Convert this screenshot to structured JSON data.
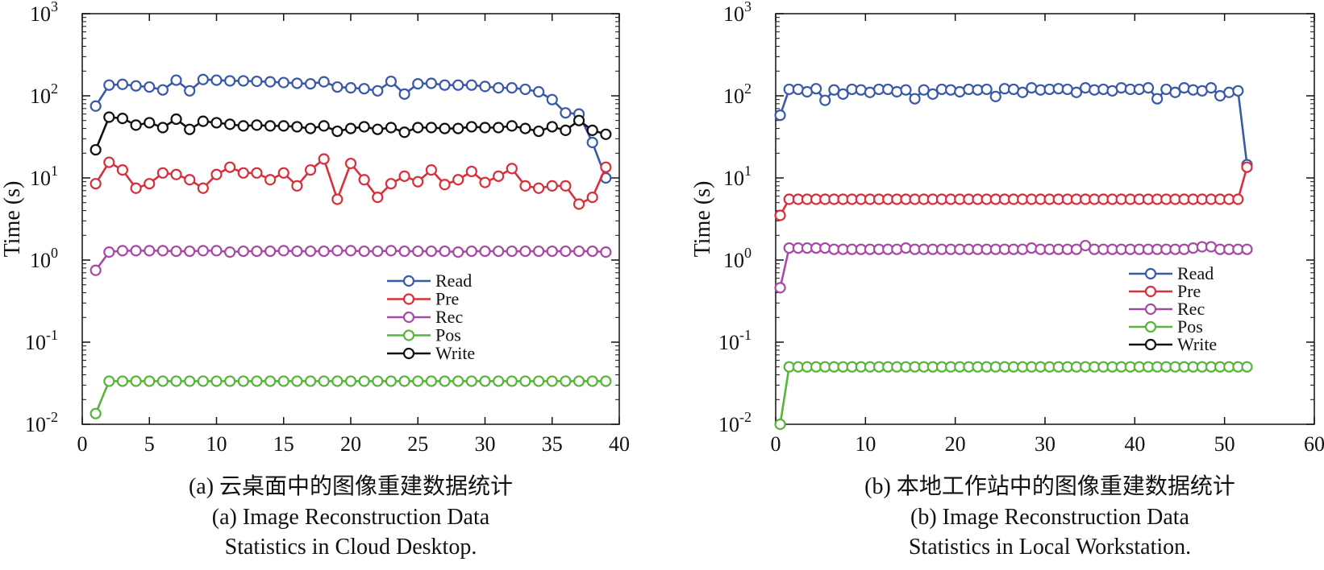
{
  "series_colors": {
    "Read": "#3a5aa8",
    "Pre": "#d7303c",
    "Rec": "#a54aa5",
    "Pos": "#58b43c",
    "Write": "#111111"
  },
  "chart_data": [
    {
      "type": "line",
      "yscale": "log",
      "xlim": [
        0,
        40
      ],
      "ylim": [
        0.01,
        1000
      ],
      "xticks": [
        "0",
        "5",
        "10",
        "15",
        "20",
        "25",
        "30",
        "35",
        "40"
      ],
      "xtick_values": [
        0,
        5,
        10,
        15,
        20,
        25,
        30,
        35,
        40
      ],
      "yticks": [
        {
          "base": "10",
          "exp": "-2",
          "value": 0.01
        },
        {
          "base": "10",
          "exp": "-1",
          "value": 0.1
        },
        {
          "base": "10",
          "exp": "0",
          "value": 1
        },
        {
          "base": "10",
          "exp": "1",
          "value": 10
        },
        {
          "base": "10",
          "exp": "2",
          "value": 100
        },
        {
          "base": "10",
          "exp": "3",
          "value": 1000
        }
      ],
      "ylabel": "Time (s)",
      "legend_position": "center-right",
      "legend": [
        "Read",
        "Pre",
        "Rec",
        "Pos",
        "Write"
      ],
      "x": [
        1,
        2,
        3,
        4,
        5,
        6,
        7,
        8,
        9,
        10,
        11,
        12,
        13,
        14,
        15,
        16,
        17,
        18,
        19,
        20,
        21,
        22,
        23,
        24,
        25,
        26,
        27,
        28,
        29,
        30,
        31,
        32,
        33,
        34,
        35,
        36,
        37,
        38,
        39
      ],
      "series": [
        {
          "name": "Read",
          "values": [
            75,
            135,
            138,
            132,
            128,
            118,
            155,
            115,
            158,
            155,
            152,
            152,
            150,
            148,
            145,
            142,
            140,
            148,
            128,
            125,
            122,
            115,
            150,
            105,
            140,
            142,
            135,
            135,
            135,
            130,
            125,
            125,
            120,
            112,
            90,
            62,
            60,
            27,
            10
          ]
        },
        {
          "name": "Pre",
          "values": [
            8.5,
            15.5,
            12.5,
            7.5,
            8.5,
            11.5,
            11,
            9.5,
            7.5,
            11,
            13.5,
            11.5,
            11.5,
            9.5,
            11.5,
            8,
            12.5,
            17,
            5.5,
            15,
            9.5,
            5.8,
            8.5,
            10.5,
            9,
            12.5,
            8.3,
            9.5,
            12,
            8.8,
            10.5,
            13,
            8,
            7.5,
            8,
            8,
            4.8,
            5.8,
            13.5
          ]
        },
        {
          "name": "Rec",
          "values": [
            0.75,
            1.25,
            1.3,
            1.3,
            1.3,
            1.3,
            1.28,
            1.28,
            1.3,
            1.3,
            1.25,
            1.28,
            1.28,
            1.28,
            1.3,
            1.28,
            1.28,
            1.28,
            1.3,
            1.3,
            1.28,
            1.28,
            1.3,
            1.28,
            1.28,
            1.28,
            1.28,
            1.25,
            1.28,
            1.28,
            1.28,
            1.28,
            1.28,
            1.28,
            1.28,
            1.28,
            1.28,
            1.28,
            1.25
          ]
        },
        {
          "name": "Pos",
          "values": [
            0.0135,
            0.0335,
            0.0335,
            0.0335,
            0.0335,
            0.0335,
            0.0335,
            0.0335,
            0.0335,
            0.0335,
            0.0335,
            0.0335,
            0.0335,
            0.0335,
            0.0335,
            0.0335,
            0.0335,
            0.0335,
            0.0335,
            0.0335,
            0.0335,
            0.0335,
            0.0335,
            0.0335,
            0.0335,
            0.0335,
            0.0335,
            0.0335,
            0.0335,
            0.0335,
            0.0335,
            0.0335,
            0.0335,
            0.0335,
            0.0335,
            0.0335,
            0.0335,
            0.0335,
            0.0335
          ]
        },
        {
          "name": "Write",
          "values": [
            22,
            55,
            53,
            44,
            47,
            41,
            52,
            39,
            49,
            47,
            45,
            43,
            44,
            43,
            43,
            42,
            40,
            43,
            37,
            40,
            42,
            39,
            41,
            36,
            41,
            41,
            40,
            40,
            42,
            41,
            41,
            43,
            40,
            37,
            42,
            38,
            50,
            38,
            34
          ]
        }
      ],
      "caption": "(a)  云桌面中的图像重建数据统计",
      "caption_en": [
        "(a) Image Reconstruction Data",
        "Statistics in Cloud Desktop."
      ]
    },
    {
      "type": "line",
      "yscale": "log",
      "xlim": [
        0,
        60
      ],
      "ylim": [
        0.01,
        1000
      ],
      "xticks": [
        "0",
        "10",
        "20",
        "30",
        "40",
        "50",
        "60"
      ],
      "xtick_values": [
        0,
        10,
        20,
        30,
        40,
        50,
        60
      ],
      "yticks": [
        {
          "base": "10",
          "exp": "-2",
          "value": 0.01
        },
        {
          "base": "10",
          "exp": "-1",
          "value": 0.1
        },
        {
          "base": "10",
          "exp": "0",
          "value": 1
        },
        {
          "base": "10",
          "exp": "1",
          "value": 10
        },
        {
          "base": "10",
          "exp": "2",
          "value": 100
        },
        {
          "base": "10",
          "exp": "3",
          "value": 1000
        }
      ],
      "ylabel": "Time (s)",
      "legend_position": "center-right",
      "legend": [
        "Read",
        "Pre",
        "Rec",
        "Pos",
        "Write"
      ],
      "x": [
        0.5,
        1.5,
        2.5,
        3.5,
        4.5,
        5.5,
        6.5,
        7.5,
        8.5,
        9.5,
        10.5,
        11.5,
        12.5,
        13.5,
        14.5,
        15.5,
        16.5,
        17.5,
        18.5,
        19.5,
        20.5,
        21.5,
        22.5,
        23.5,
        24.5,
        25.5,
        26.5,
        27.5,
        28.5,
        29.5,
        30.5,
        31.5,
        32.5,
        33.5,
        34.5,
        35.5,
        36.5,
        37.5,
        38.5,
        39.5,
        40.5,
        41.5,
        42.5,
        43.5,
        44.5,
        45.5,
        46.5,
        47.5,
        48.5,
        49.5,
        50.5,
        51.5,
        52.5
      ],
      "series": [
        {
          "name": "Read",
          "values": [
            58,
            120,
            120,
            112,
            122,
            88,
            118,
            105,
            120,
            118,
            110,
            120,
            120,
            112,
            118,
            92,
            118,
            105,
            120,
            118,
            112,
            120,
            118,
            120,
            98,
            122,
            120,
            110,
            125,
            118,
            120,
            122,
            120,
            110,
            125,
            118,
            120,
            115,
            125,
            120,
            120,
            125,
            92,
            120,
            110,
            125,
            118,
            115,
            125,
            100,
            110,
            115,
            14.5
          ]
        },
        {
          "name": "Pre",
          "values": [
            3.5,
            5.5,
            5.5,
            5.5,
            5.5,
            5.5,
            5.5,
            5.5,
            5.5,
            5.5,
            5.5,
            5.5,
            5.5,
            5.5,
            5.5,
            5.5,
            5.5,
            5.5,
            5.5,
            5.5,
            5.5,
            5.5,
            5.5,
            5.5,
            5.5,
            5.5,
            5.5,
            5.5,
            5.5,
            5.5,
            5.5,
            5.5,
            5.5,
            5.5,
            5.5,
            5.5,
            5.5,
            5.5,
            5.5,
            5.5,
            5.5,
            5.5,
            5.5,
            5.5,
            5.5,
            5.5,
            5.5,
            5.5,
            5.5,
            5.5,
            5.5,
            5.5,
            13.5
          ]
        },
        {
          "name": "Rec",
          "values": [
            0.46,
            1.4,
            1.4,
            1.4,
            1.4,
            1.4,
            1.35,
            1.35,
            1.35,
            1.35,
            1.35,
            1.35,
            1.35,
            1.35,
            1.4,
            1.35,
            1.35,
            1.35,
            1.35,
            1.35,
            1.35,
            1.35,
            1.35,
            1.35,
            1.35,
            1.35,
            1.35,
            1.35,
            1.4,
            1.35,
            1.35,
            1.35,
            1.35,
            1.35,
            1.5,
            1.35,
            1.35,
            1.35,
            1.35,
            1.35,
            1.35,
            1.35,
            1.35,
            1.35,
            1.35,
            1.35,
            1.4,
            1.45,
            1.45,
            1.35,
            1.35,
            1.35,
            1.35
          ]
        },
        {
          "name": "Pos",
          "values": [
            0.01,
            0.05,
            0.05,
            0.05,
            0.05,
            0.05,
            0.05,
            0.05,
            0.05,
            0.05,
            0.05,
            0.05,
            0.05,
            0.05,
            0.05,
            0.05,
            0.05,
            0.05,
            0.05,
            0.05,
            0.05,
            0.05,
            0.05,
            0.05,
            0.05,
            0.05,
            0.05,
            0.05,
            0.05,
            0.05,
            0.05,
            0.05,
            0.05,
            0.05,
            0.05,
            0.05,
            0.05,
            0.05,
            0.05,
            0.05,
            0.05,
            0.05,
            0.05,
            0.05,
            0.05,
            0.05,
            0.05,
            0.05,
            0.05,
            0.05,
            0.05,
            0.05,
            0.05
          ]
        }
      ],
      "caption": "(b) 本地工作站中的图像重建数据统计",
      "caption_en": [
        "(b) Image Reconstruction Data",
        "Statistics in Local Workstation."
      ]
    }
  ]
}
